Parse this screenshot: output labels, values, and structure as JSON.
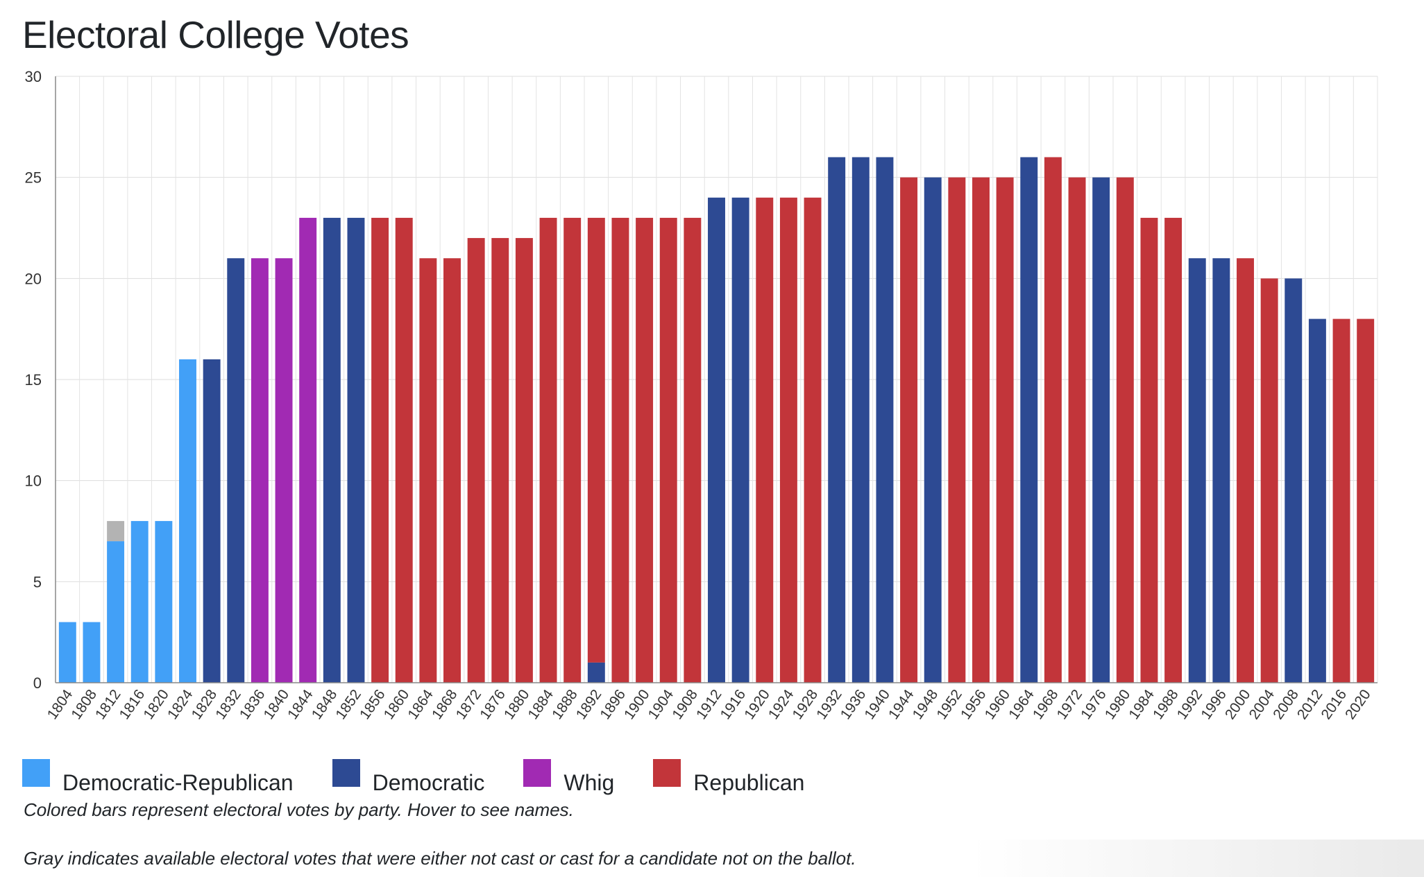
{
  "page": {
    "title": "Electoral College Votes",
    "notes": [
      "Colored bars represent electoral votes by party. Hover to see names.",
      "Gray indicates available electoral votes that were either not cast or cast for a candidate not on the ballot."
    ]
  },
  "parties": {
    "DR": {
      "name": "Democratic-Republican",
      "color": "#42a0f7"
    },
    "D": {
      "name": "Democratic",
      "color": "#2d4a93"
    },
    "W": {
      "name": "Whig",
      "color": "#a12ab3"
    },
    "R": {
      "name": "Republican",
      "color": "#c2353a"
    },
    "N": {
      "name": "",
      "color": "#b3b3b3"
    }
  },
  "legend": [
    {
      "label": "Democratic-Republican",
      "color": "#42a0f7"
    },
    {
      "label": "Democratic",
      "color": "#2d4a93"
    },
    {
      "label": "Whig",
      "color": "#a12ab3"
    },
    {
      "label": "Republican",
      "color": "#c2353a"
    }
  ],
  "chart_data": {
    "type": "bar",
    "stacked": true,
    "title": "Electoral College Votes",
    "xlabel": "",
    "ylabel": "",
    "ylim": [
      0,
      30
    ],
    "yticks": [
      0,
      5,
      10,
      15,
      20,
      25,
      30
    ],
    "grid": true,
    "legend_position": "bottom-left",
    "categories": [
      "1804",
      "1808",
      "1812",
      "1816",
      "1820",
      "1824",
      "1828",
      "1832",
      "1836",
      "1840",
      "1844",
      "1848",
      "1852",
      "1856",
      "1860",
      "1864",
      "1868",
      "1872",
      "1876",
      "1880",
      "1884",
      "1888",
      "1892",
      "1896",
      "1900",
      "1904",
      "1908",
      "1912",
      "1916",
      "1920",
      "1924",
      "1928",
      "1932",
      "1936",
      "1940",
      "1944",
      "1948",
      "1952",
      "1956",
      "1960",
      "1964",
      "1968",
      "1972",
      "1976",
      "1980",
      "1984",
      "1988",
      "1992",
      "1996",
      "2000",
      "2004",
      "2008",
      "2012",
      "2016",
      "2020"
    ],
    "bars": [
      [
        [
          "DR",
          3
        ]
      ],
      [
        [
          "DR",
          3
        ]
      ],
      [
        [
          "DR",
          7
        ],
        [
          "N",
          1
        ]
      ],
      [
        [
          "DR",
          8
        ]
      ],
      [
        [
          "DR",
          8
        ]
      ],
      [
        [
          "DR",
          16
        ]
      ],
      [
        [
          "D",
          16
        ]
      ],
      [
        [
          "D",
          21
        ]
      ],
      [
        [
          "W",
          21
        ]
      ],
      [
        [
          "W",
          21
        ]
      ],
      [
        [
          "W",
          23
        ]
      ],
      [
        [
          "D",
          23
        ]
      ],
      [
        [
          "D",
          23
        ]
      ],
      [
        [
          "R",
          23
        ]
      ],
      [
        [
          "R",
          23
        ]
      ],
      [
        [
          "R",
          21
        ]
      ],
      [
        [
          "R",
          21
        ]
      ],
      [
        [
          "R",
          22
        ]
      ],
      [
        [
          "R",
          22
        ]
      ],
      [
        [
          "R",
          22
        ]
      ],
      [
        [
          "R",
          23
        ]
      ],
      [
        [
          "R",
          23
        ]
      ],
      [
        [
          "D",
          1
        ],
        [
          "R",
          22
        ]
      ],
      [
        [
          "R",
          23
        ]
      ],
      [
        [
          "R",
          23
        ]
      ],
      [
        [
          "R",
          23
        ]
      ],
      [
        [
          "R",
          23
        ]
      ],
      [
        [
          "D",
          24
        ]
      ],
      [
        [
          "D",
          24
        ]
      ],
      [
        [
          "R",
          24
        ]
      ],
      [
        [
          "R",
          24
        ]
      ],
      [
        [
          "R",
          24
        ]
      ],
      [
        [
          "D",
          26
        ]
      ],
      [
        [
          "D",
          26
        ]
      ],
      [
        [
          "D",
          26
        ]
      ],
      [
        [
          "R",
          25
        ]
      ],
      [
        [
          "D",
          25
        ]
      ],
      [
        [
          "R",
          25
        ]
      ],
      [
        [
          "R",
          25
        ]
      ],
      [
        [
          "R",
          25
        ]
      ],
      [
        [
          "D",
          26
        ]
      ],
      [
        [
          "R",
          26
        ]
      ],
      [
        [
          "R",
          25
        ]
      ],
      [
        [
          "D",
          25
        ]
      ],
      [
        [
          "R",
          25
        ]
      ],
      [
        [
          "R",
          23
        ]
      ],
      [
        [
          "R",
          23
        ]
      ],
      [
        [
          "D",
          21
        ]
      ],
      [
        [
          "D",
          21
        ]
      ],
      [
        [
          "R",
          21
        ]
      ],
      [
        [
          "R",
          20
        ]
      ],
      [
        [
          "D",
          20
        ]
      ],
      [
        [
          "D",
          18
        ]
      ],
      [
        [
          "R",
          18
        ]
      ],
      [
        [
          "R",
          18
        ]
      ]
    ]
  }
}
